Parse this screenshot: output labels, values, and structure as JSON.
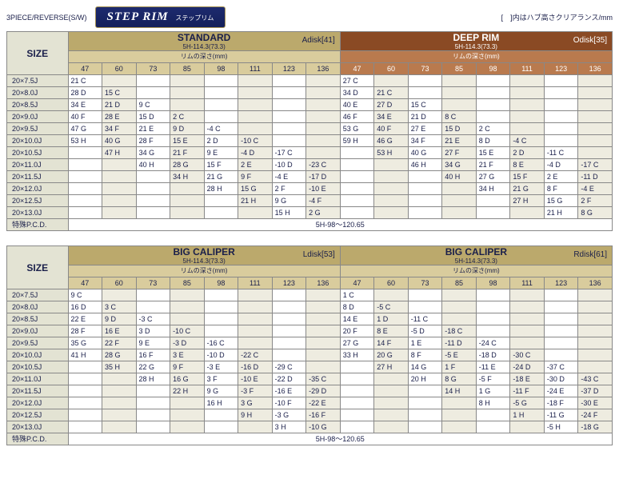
{
  "top": {
    "left": "3PIECE/REVERSE(S/W)",
    "badge_main": "STEP RIM",
    "badge_sub": "ステップリム",
    "right": "[　]内はハブ高さクリアランス/mm"
  },
  "labels": {
    "size": "SIZE",
    "rimdepth": "リムの深さ(mm)",
    "spec": "5H-114.3(73.3)",
    "pcd_label": "特殊P.C.D.",
    "pcd_value": "5H-98～120.65"
  },
  "blocks": [
    {
      "title": "STANDARD",
      "disk": "Adisk[41]",
      "style": "std"
    },
    {
      "title": "DEEP RIM",
      "disk": "Odisk[35]",
      "style": "deep"
    },
    {
      "title": "BIG CALIPER",
      "disk": "Ldisk[53]",
      "style": "std"
    },
    {
      "title": "BIG CALIPER",
      "disk": "Rdisk[61]",
      "style": "std"
    }
  ],
  "cols": [
    "47",
    "60",
    "73",
    "85",
    "98",
    "111",
    "123",
    "136"
  ],
  "sizes": [
    "20×7.5J",
    "20×8.0J",
    "20×8.5J",
    "20×9.0J",
    "20×9.5J",
    "20×10.0J",
    "20×10.5J",
    "20×11.0J",
    "20×11.5J",
    "20×12.0J",
    "20×12.5J",
    "20×13.0J"
  ],
  "section1": {
    "left": [
      [
        "21 C",
        "",
        "",
        "",
        "",
        "",
        "",
        ""
      ],
      [
        "28 D",
        "15 C",
        "",
        "",
        "",
        "",
        "",
        ""
      ],
      [
        "34 E",
        "21 D",
        "9 C",
        "",
        "",
        "",
        "",
        ""
      ],
      [
        "40 F",
        "28 E",
        "15 D",
        "2 C",
        "",
        "",
        "",
        ""
      ],
      [
        "47 G",
        "34 F",
        "21 E",
        "9 D",
        "-4 C",
        "",
        "",
        ""
      ],
      [
        "53 H",
        "40 G",
        "28 F",
        "15 E",
        "2 D",
        "-10 C",
        "",
        ""
      ],
      [
        "",
        "47 H",
        "34 G",
        "21 F",
        "9 E",
        "-4 D",
        "-17 C",
        ""
      ],
      [
        "",
        "",
        "40 H",
        "28 G",
        "15 F",
        "2 E",
        "-10 D",
        "-23 C"
      ],
      [
        "",
        "",
        "",
        "34 H",
        "21 G",
        "9 F",
        "-4 E",
        "-17 D"
      ],
      [
        "",
        "",
        "",
        "",
        "28 H",
        "15 G",
        "2 F",
        "-10 E"
      ],
      [
        "",
        "",
        "",
        "",
        "",
        "21 H",
        "9 G",
        "-4 F"
      ],
      [
        "",
        "",
        "",
        "",
        "",
        "",
        "15 H",
        "2 G"
      ]
    ],
    "right": [
      [
        "27 C",
        "",
        "",
        "",
        "",
        "",
        "",
        ""
      ],
      [
        "34 D",
        "21 C",
        "",
        "",
        "",
        "",
        "",
        ""
      ],
      [
        "40 E",
        "27 D",
        "15 C",
        "",
        "",
        "",
        "",
        ""
      ],
      [
        "46 F",
        "34 E",
        "21 D",
        "8 C",
        "",
        "",
        "",
        ""
      ],
      [
        "53 G",
        "40 F",
        "27 E",
        "15 D",
        "2 C",
        "",
        "",
        ""
      ],
      [
        "59 H",
        "46 G",
        "34 F",
        "21 E",
        "8 D",
        "-4 C",
        "",
        ""
      ],
      [
        "",
        "53 H",
        "40 G",
        "27 F",
        "15 E",
        "2 D",
        "-11 C",
        ""
      ],
      [
        "",
        "",
        "46 H",
        "34 G",
        "21 F",
        "8 E",
        "-4 D",
        "-17 C"
      ],
      [
        "",
        "",
        "",
        "40 H",
        "27 G",
        "15 F",
        "2 E",
        "-11 D"
      ],
      [
        "",
        "",
        "",
        "",
        "34 H",
        "21 G",
        "8 F",
        "-4 E"
      ],
      [
        "",
        "",
        "",
        "",
        "",
        "27 H",
        "15 G",
        "2 F"
      ],
      [
        "",
        "",
        "",
        "",
        "",
        "",
        "21 H",
        "8 G"
      ]
    ]
  },
  "section2": {
    "left": [
      [
        "9 C",
        "",
        "",
        "",
        "",
        "",
        "",
        ""
      ],
      [
        "16 D",
        "3 C",
        "",
        "",
        "",
        "",
        "",
        ""
      ],
      [
        "22 E",
        "9 D",
        "-3 C",
        "",
        "",
        "",
        "",
        ""
      ],
      [
        "28 F",
        "16 E",
        "3 D",
        "-10 C",
        "",
        "",
        "",
        ""
      ],
      [
        "35 G",
        "22 F",
        "9 E",
        "-3 D",
        "-16 C",
        "",
        "",
        ""
      ],
      [
        "41 H",
        "28 G",
        "16 F",
        "3 E",
        "-10 D",
        "-22 C",
        "",
        ""
      ],
      [
        "",
        "35 H",
        "22 G",
        "9 F",
        "-3 E",
        "-16 D",
        "-29 C",
        ""
      ],
      [
        "",
        "",
        "28 H",
        "16 G",
        "3 F",
        "-10 E",
        "-22 D",
        "-35 C"
      ],
      [
        "",
        "",
        "",
        "22 H",
        "9 G",
        "-3 F",
        "-16 E",
        "-29 D"
      ],
      [
        "",
        "",
        "",
        "",
        "16 H",
        "3 G",
        "-10 F",
        "-22 E"
      ],
      [
        "",
        "",
        "",
        "",
        "",
        "9 H",
        "-3 G",
        "-16 F"
      ],
      [
        "",
        "",
        "",
        "",
        "",
        "",
        "3 H",
        "-10 G"
      ]
    ],
    "right": [
      [
        "1 C",
        "",
        "",
        "",
        "",
        "",
        "",
        ""
      ],
      [
        "8 D",
        "-5 C",
        "",
        "",
        "",
        "",
        "",
        ""
      ],
      [
        "14 E",
        "1 D",
        "-11 C",
        "",
        "",
        "",
        "",
        ""
      ],
      [
        "20 F",
        "8 E",
        "-5 D",
        "-18 C",
        "",
        "",
        "",
        ""
      ],
      [
        "27 G",
        "14 F",
        "1 E",
        "-11 D",
        "-24 C",
        "",
        "",
        ""
      ],
      [
        "33 H",
        "20 G",
        "8 F",
        "-5 E",
        "-18 D",
        "-30 C",
        "",
        ""
      ],
      [
        "",
        "27 H",
        "14 G",
        "1 F",
        "-11 E",
        "-24 D",
        "-37 C",
        ""
      ],
      [
        "",
        "",
        "20 H",
        "8 G",
        "-5 F",
        "-18 E",
        "-30 D",
        "-43 C"
      ],
      [
        "",
        "",
        "",
        "14 H",
        "1 G",
        "-11 F",
        "-24 E",
        "-37 D"
      ],
      [
        "",
        "",
        "",
        "",
        "8 H",
        "-5 G",
        "-18 F",
        "-30 E"
      ],
      [
        "",
        "",
        "",
        "",
        "",
        "1 H",
        "-11 G",
        "-24 F"
      ],
      [
        "",
        "",
        "",
        "",
        "",
        "",
        "-5 H",
        "-18 G"
      ]
    ]
  }
}
